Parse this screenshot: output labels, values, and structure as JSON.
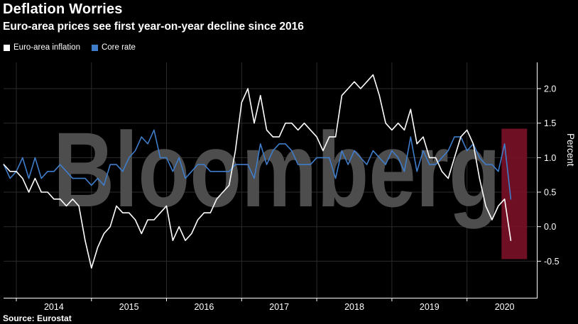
{
  "chart_data": {
    "type": "line",
    "title": "Deflation Worries",
    "subtitle": "Euro-area prices see first year-on-year decline since 2016",
    "source": "Source: Eurostat",
    "watermark": "Bloomberg",
    "ylabel": "Percent",
    "ylim": [
      -1.03,
      2.38
    ],
    "xlim": [
      2013.83,
      2020.92
    ],
    "x_start": 2013.8333,
    "x_unit": "month",
    "yticks": [
      2.0,
      1.5,
      1.0,
      0.5,
      0.0,
      -0.5
    ],
    "ytick_labels": [
      "2.0",
      "1.5",
      "1.0",
      "0.5",
      "0.0",
      "-0.5"
    ],
    "grid_years": [
      2014,
      2015,
      2016,
      2017,
      2018,
      2019,
      2020
    ],
    "year_labels": [
      "2014",
      "2015",
      "2016",
      "2017",
      "2018",
      "2019",
      "2020"
    ],
    "grid": true,
    "legend_position": "top-left",
    "highlight": {
      "x0": 2020.46,
      "x1": 2020.8,
      "y0": -0.47,
      "y1": 1.42,
      "color": "#7a1127",
      "opacity": 0.9
    },
    "colors": {
      "background": "#000000",
      "text": "#ffffff",
      "axis": "#ffffff",
      "grid": "#2b2b2b",
      "watermark": "#4d4d4d"
    },
    "series": [
      {
        "id": "euro-area-inflation",
        "name": "Euro-area inflation",
        "color": "#ffffff",
        "values": [
          0.9,
          0.8,
          0.8,
          0.7,
          0.5,
          0.7,
          0.5,
          0.5,
          0.4,
          0.4,
          0.3,
          0.4,
          0.3,
          -0.2,
          -0.6,
          -0.3,
          -0.1,
          0.0,
          0.3,
          0.2,
          0.2,
          0.1,
          -0.1,
          0.1,
          0.1,
          0.2,
          0.3,
          -0.2,
          0.0,
          -0.2,
          -0.1,
          0.1,
          0.2,
          0.2,
          0.4,
          0.5,
          0.6,
          1.1,
          1.8,
          2.0,
          1.5,
          1.9,
          1.4,
          1.3,
          1.3,
          1.5,
          1.5,
          1.4,
          1.5,
          1.4,
          1.3,
          1.1,
          1.3,
          1.3,
          1.9,
          2.0,
          2.1,
          2.0,
          2.1,
          2.2,
          1.9,
          1.5,
          1.4,
          1.5,
          1.4,
          1.7,
          1.2,
          1.3,
          1.0,
          1.0,
          0.8,
          0.7,
          1.0,
          1.3,
          1.4,
          1.2,
          0.7,
          0.3,
          0.1,
          0.3,
          0.4,
          -0.2
        ]
      },
      {
        "id": "core-rate",
        "name": "Core rate",
        "color": "#3f7dca",
        "values": [
          0.9,
          0.7,
          0.8,
          1.0,
          0.7,
          1.0,
          0.7,
          0.8,
          0.8,
          0.9,
          0.8,
          0.7,
          0.7,
          0.7,
          0.6,
          0.7,
          0.6,
          0.9,
          0.9,
          0.8,
          1.0,
          1.1,
          1.3,
          1.2,
          1.4,
          1.0,
          1.0,
          0.8,
          1.0,
          0.7,
          0.8,
          0.9,
          0.9,
          0.8,
          0.8,
          0.8,
          0.8,
          0.9,
          0.9,
          0.9,
          0.7,
          1.2,
          0.9,
          1.1,
          1.2,
          1.2,
          1.1,
          0.9,
          0.9,
          0.9,
          1.0,
          1.0,
          1.0,
          0.7,
          1.1,
          0.9,
          1.1,
          1.0,
          0.9,
          1.1,
          1.0,
          0.9,
          1.1,
          1.0,
          0.8,
          1.3,
          0.8,
          1.1,
          0.9,
          0.9,
          1.0,
          1.1,
          1.3,
          1.3,
          1.1,
          1.2,
          1.0,
          0.9,
          0.9,
          0.8,
          1.2,
          0.4
        ]
      }
    ]
  }
}
